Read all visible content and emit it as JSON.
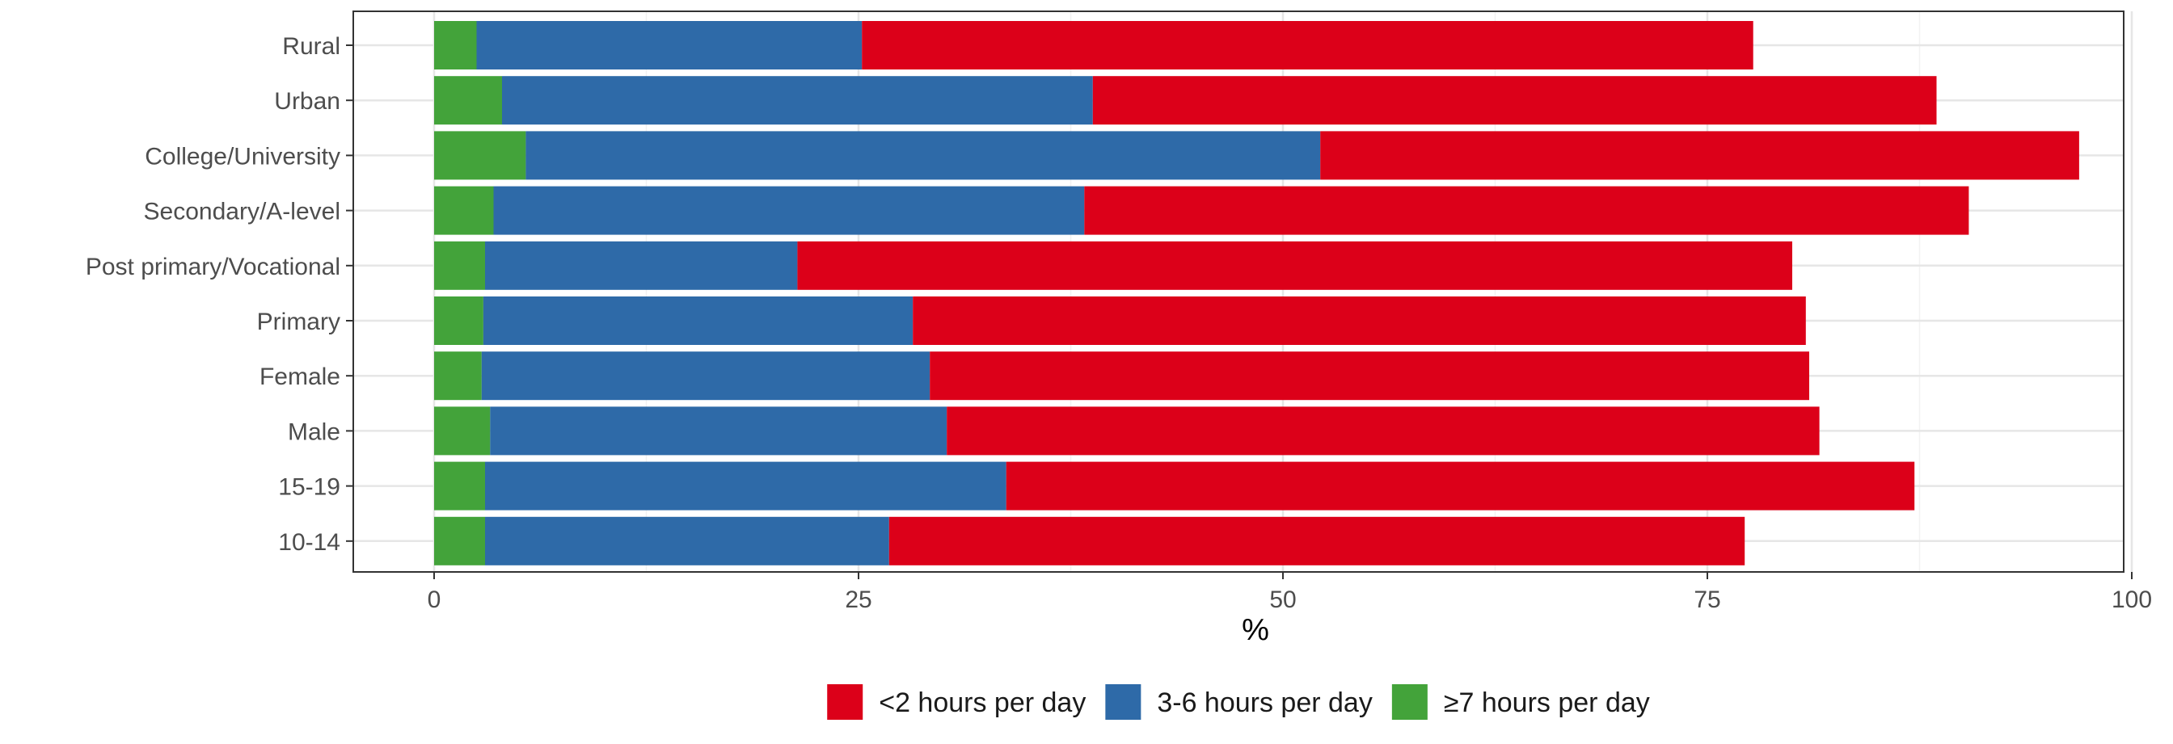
{
  "chart_data": {
    "type": "bar",
    "orientation": "horizontal",
    "stacked": true,
    "title": "",
    "xlabel": "%",
    "ylabel": "",
    "xlim": [
      0,
      100
    ],
    "x_ticks": [
      0,
      25,
      50,
      75,
      100
    ],
    "grid": true,
    "legend_position": "bottom",
    "categories": [
      "Rural",
      "Urban",
      "College/University",
      "Secondary/A-level",
      "Post primary/Vocational",
      "Primary",
      "Female",
      "Male",
      "15-19",
      "10-14"
    ],
    "series": [
      {
        "name": "≥7 hours per day",
        "color": "#43a33a",
        "values": [
          2.5,
          4.0,
          5.4,
          3.5,
          3.0,
          2.9,
          2.8,
          3.3,
          3.0,
          3.0
        ]
      },
      {
        "name": "3-6 hours per day",
        "color": "#2e6aa8",
        "values": [
          22.7,
          34.8,
          46.8,
          34.8,
          18.4,
          25.3,
          26.4,
          26.9,
          30.7,
          23.8
        ]
      },
      {
        "name": "<2 hours per day",
        "color": "#dc0019",
        "values": [
          52.5,
          49.7,
          44.7,
          52.1,
          58.6,
          52.6,
          51.8,
          51.4,
          53.5,
          50.4
        ]
      }
    ],
    "legend_order": [
      "<2 hours per day",
      "3-6 hours per day",
      "≥7 hours per day"
    ]
  }
}
